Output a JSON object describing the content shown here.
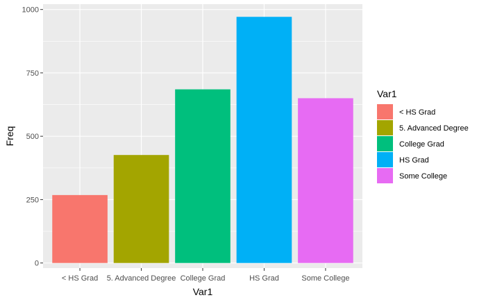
{
  "chart_data": {
    "type": "bar",
    "title": "",
    "xlabel": "Var1",
    "ylabel": "Freq",
    "categories": [
      "< HS Grad",
      "5. Advanced Degree",
      "College Grad",
      "HS Grad",
      "Some College"
    ],
    "values": [
      268,
      426,
      685,
      971,
      650
    ],
    "colors": [
      "#F8766D",
      "#A3A500",
      "#00BF7D",
      "#00B0F6",
      "#E76BF3"
    ],
    "ylim": [
      -20,
      1021
    ],
    "yticks": [
      0,
      250,
      500,
      750,
      1000
    ],
    "ytick_labels": [
      "0",
      "250",
      "500",
      "750",
      "1000"
    ],
    "grid": true,
    "panel_background": "#EBEBEB",
    "grid_color": "#FFFFFF",
    "legend": {
      "title": "Var1",
      "position": "right",
      "entries": [
        "< HS Grad",
        "5. Advanced Degree",
        "College Grad",
        "HS Grad",
        "Some College"
      ]
    }
  }
}
